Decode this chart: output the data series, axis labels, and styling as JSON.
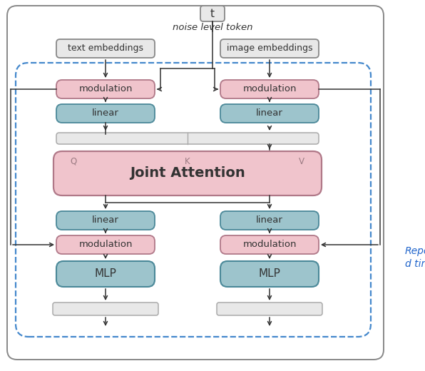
{
  "bg_color": "#ffffff",
  "box_pink": "#f0c4cc",
  "box_pink_border": "#b07888",
  "box_teal": "#9dc4cc",
  "box_teal_border": "#4a8898",
  "box_light_fill": "#e8e8e8",
  "box_light_border": "#aaaaaa",
  "box_white_border": "#888888",
  "dashed_border": "#4488cc",
  "arrow_color": "#333333",
  "repeat_text_color": "#2266cc",
  "text_color": "#333333",
  "noise_token_label": "noise level token",
  "t_label": "t",
  "text_emb_label": "text embeddings",
  "image_emb_label": "image embeddings",
  "modulation_label": "modulation",
  "linear_label": "linear",
  "joint_attention_label": "Joint Attention",
  "mlp_label": "MLP",
  "repeat_label_1": "Repeat",
  "repeat_label_2": "d times",
  "q_label": "Q",
  "k_label": "K",
  "v_label": "V"
}
